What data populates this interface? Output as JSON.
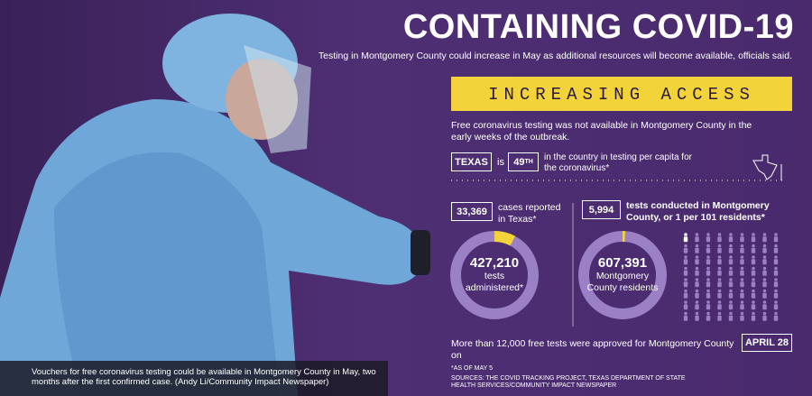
{
  "title": "CONTAINING COVID-19",
  "subtitle": "Testing in Montgomery County could increase in May as additional resources will become available, officials said.",
  "banner": "INCREASING ACCESS",
  "intro": "Free coronavirus testing was not available in Montgomery County in the early weeks of the outbreak.",
  "ranking": {
    "state": "TEXAS",
    "connector": "is",
    "rank": "49",
    "rank_suffix": "TH",
    "text": "in the country in testing per capita for the coronavirus*"
  },
  "texas": {
    "cases": "33,369",
    "cases_label": "cases reported in Texas*",
    "tests": "427,210",
    "tests_label": "tests administered*"
  },
  "county": {
    "tests": "5,994",
    "tests_label": "tests conducted in Montgomery County, or 1 per 101 residents*",
    "residents": "607,391",
    "residents_label": "Montgomery County residents"
  },
  "approval": {
    "text": "More than 12,000 free tests were approved for Montgomery County on",
    "date": "APRIL 28"
  },
  "note": "*AS OF MAY 5",
  "sources": "SOURCES: THE COVID TRACKING PROJECT, TEXAS DEPARTMENT OF STATE HEALTH SERVICES/COMMUNITY IMPACT NEWSPAPER",
  "caption": "Vouchers for free coronavirus testing could be available in Montgomery County in May, two months after the first confirmed case. (Andy Li/Community Impact Newspaper)"
}
